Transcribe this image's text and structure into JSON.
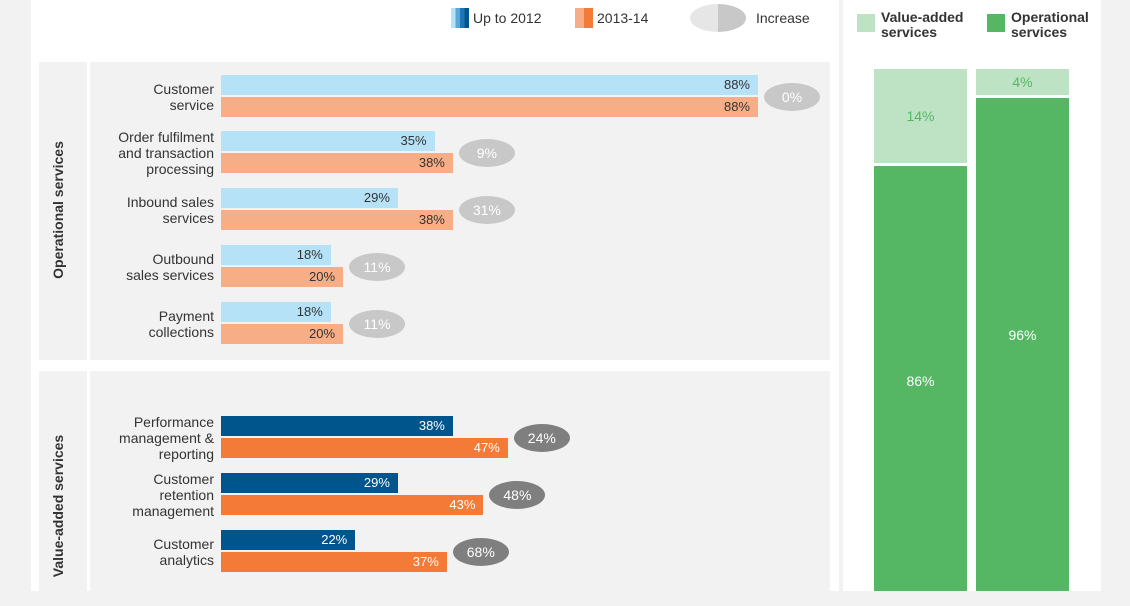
{
  "legend": {
    "up_to_2012": "Up to 2012",
    "y2013_14": "2013-14",
    "increase": "Increase"
  },
  "colors": {
    "op_2012": "#b5e2f7",
    "op_2013": "#f7ae86",
    "va_2012": "#00558c",
    "va_2013": "#f47a38",
    "op_oval": "#c8c8c8",
    "va_oval": "#7f7f7f",
    "stack_va": "#bde3c4",
    "stack_op": "#55b764"
  },
  "sections": {
    "operational": "Operational services",
    "value_added": "Value-added services"
  },
  "chart_data": [
    {
      "type": "bar",
      "orientation": "horizontal",
      "groups": [
        {
          "section": "Operational services",
          "categories": [
            [
              "Customer",
              "service"
            ],
            [
              "Order fulfilment",
              "and transaction",
              "processing"
            ],
            [
              "Inbound sales",
              "services"
            ],
            [
              "Outbound",
              "sales services"
            ],
            [
              "Payment",
              "collections"
            ]
          ],
          "series": [
            {
              "name": "Up to 2012",
              "values": [
                88,
                35,
                29,
                18,
                18
              ]
            },
            {
              "name": "2013-14",
              "values": [
                88,
                38,
                38,
                20,
                20
              ]
            },
            {
              "name": "Increase",
              "values": [
                0,
                9,
                31,
                11,
                11
              ]
            }
          ]
        },
        {
          "section": "Value-added services",
          "categories": [
            [
              "Performance",
              "management &",
              "reporting"
            ],
            [
              "Customer",
              "retention",
              "management"
            ],
            [
              "Customer",
              "analytics"
            ]
          ],
          "series": [
            {
              "name": "Up to 2012",
              "values": [
                38,
                29,
                22
              ]
            },
            {
              "name": "2013-14",
              "values": [
                47,
                43,
                37
              ]
            },
            {
              "name": "Increase",
              "values": [
                24,
                48,
                68
              ]
            }
          ]
        }
      ],
      "value_suffix": "%",
      "xlim": [
        0,
        88
      ]
    },
    {
      "type": "bar",
      "stacked": true,
      "legend": [
        "Value-added services",
        "Operational services"
      ],
      "columns": [
        {
          "value_added": 14,
          "operational": 86
        },
        {
          "value_added": 4,
          "operational": 96
        }
      ],
      "value_suffix": "%"
    }
  ]
}
